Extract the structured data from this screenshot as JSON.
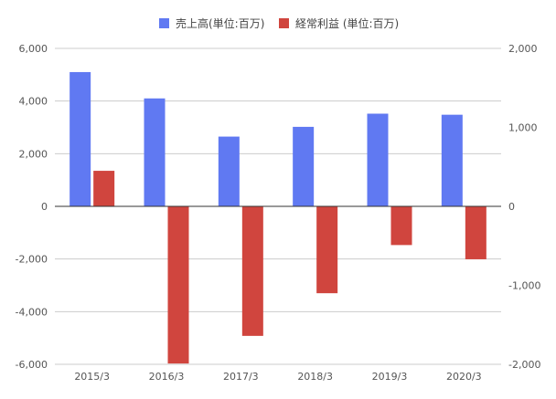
{
  "chart_data": {
    "type": "bar",
    "categories": [
      "2015/3",
      "2016/3",
      "2017/3",
      "2018/3",
      "2019/3",
      "2020/3"
    ],
    "series": [
      {
        "name": "売上高(単位:百万)",
        "axis": "left",
        "color": "#6079f2",
        "values": [
          5100,
          4100,
          2650,
          3020,
          3520,
          3480
        ]
      },
      {
        "name": "経常利益 (単位:百万)",
        "axis": "right",
        "color": "#d0453e",
        "values": [
          450,
          -1990,
          -1640,
          -1100,
          -490,
          -670
        ]
      }
    ],
    "y_left": {
      "min": -6000,
      "max": 6000,
      "ticks": [
        6000,
        4000,
        2000,
        0,
        -2000,
        -4000,
        -6000
      ],
      "tick_labels": [
        "6,000",
        "4,000",
        "2,000",
        "0",
        "-2,000",
        "-4,000",
        "-6,000"
      ]
    },
    "y_right": {
      "min": -2000,
      "max": 2000,
      "ticks": [
        2000,
        1000,
        0,
        -1000,
        -2000
      ],
      "tick_labels": [
        "2,000",
        "1,000",
        "0",
        "-1,000",
        "-2,000"
      ]
    },
    "grid": true,
    "legend_position": "top-center",
    "title": "",
    "xlabel": "",
    "ylabel": ""
  }
}
